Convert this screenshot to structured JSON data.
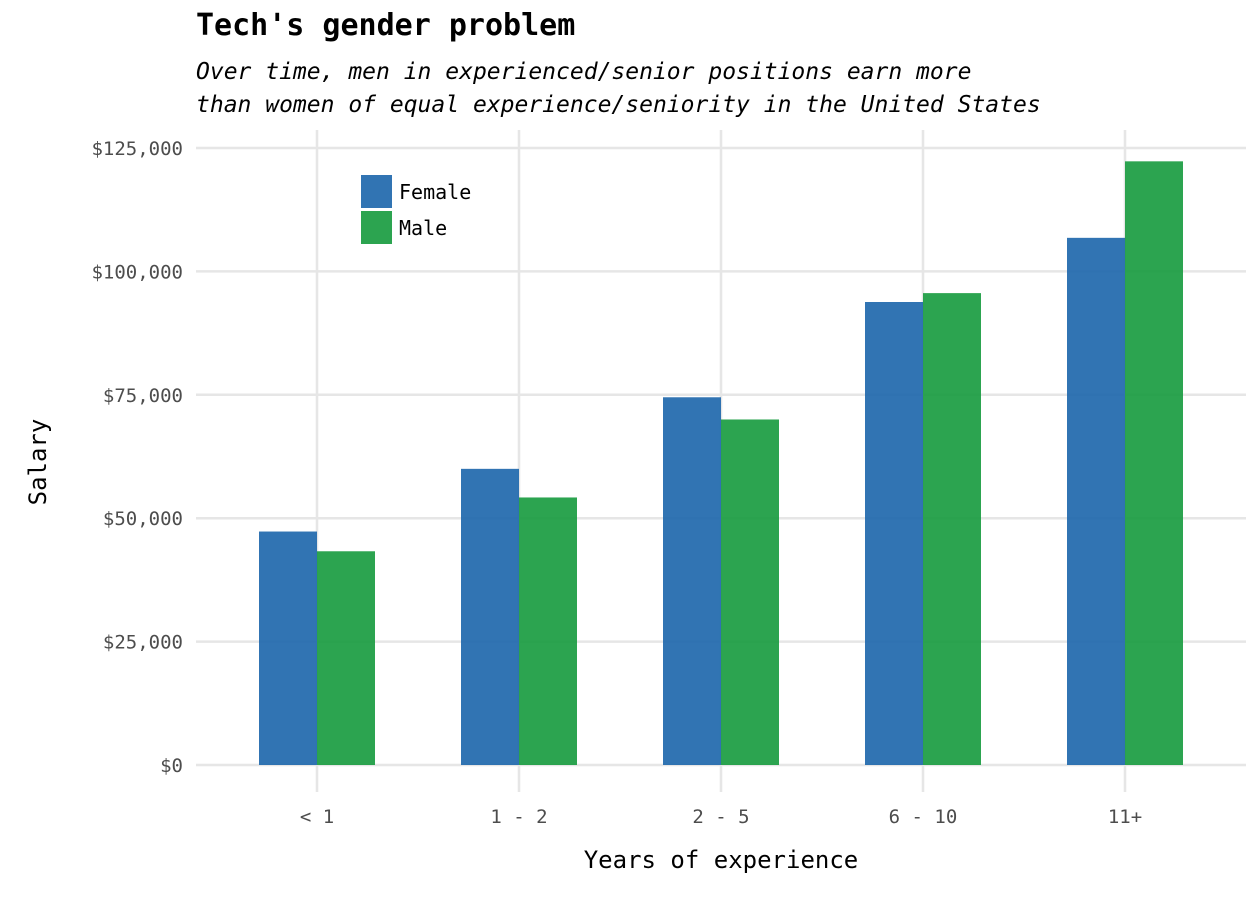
{
  "chart_data": {
    "type": "bar",
    "title": "Tech's gender problem",
    "subtitle": [
      "Over time, men in experienced/senior positions earn more",
      "than women of equal experience/seniority in the United States"
    ],
    "xlabel": "Years of experience",
    "ylabel": "Salary",
    "categories": [
      "< 1",
      "1 - 2",
      "2 - 5",
      "6 - 10",
      "11+"
    ],
    "series": [
      {
        "name": "Female",
        "color": "#1f68ad",
        "values": [
          47300,
          60000,
          74500,
          93800,
          106800
        ]
      },
      {
        "name": "Male",
        "color": "#1a9c41",
        "values": [
          43300,
          54200,
          70000,
          95600,
          122300
        ]
      }
    ],
    "ylim": [
      0,
      125000
    ],
    "yticks": [
      0,
      25000,
      50000,
      75000,
      100000,
      125000
    ],
    "ytick_labels": [
      "$0",
      "$25,000",
      "$50,000",
      "$75,000",
      "$100,000",
      "$125,000"
    ],
    "grid": true,
    "legend_position": "top-left"
  }
}
